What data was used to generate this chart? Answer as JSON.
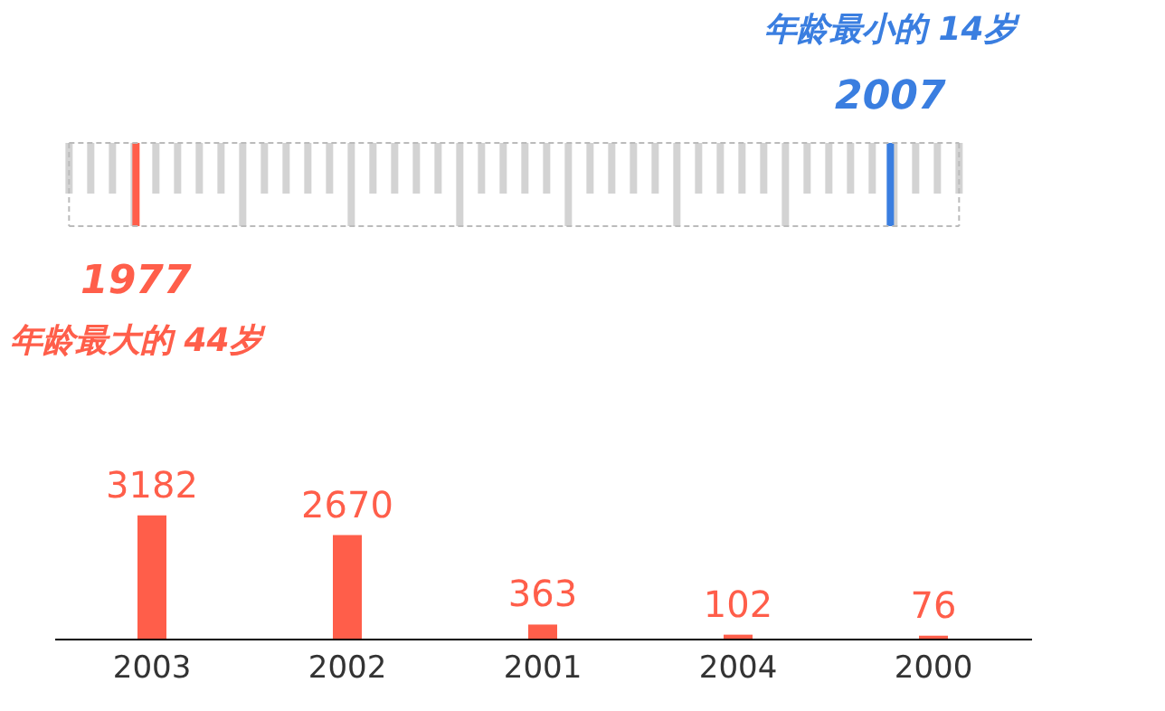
{
  "chart_data": [
    {
      "type": "other",
      "annotations": [
        "年龄最小的 14岁",
        "2007",
        "1977",
        "年龄最大的 44岁"
      ]
    },
    {
      "type": "bar",
      "categories": [
        "2003",
        "2002",
        "2001",
        "2004",
        "2000"
      ],
      "values": [
        3182,
        2670,
        363,
        102,
        76
      ],
      "color": "#ff5e4a",
      "data_labels": true,
      "tick_labels": "x"
    }
  ]
}
